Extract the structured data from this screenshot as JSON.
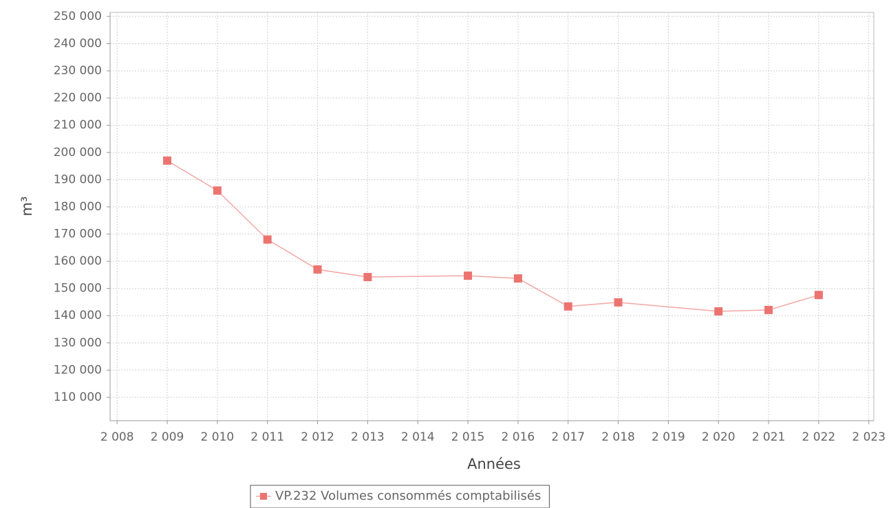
{
  "chart_data": {
    "type": "line",
    "x_label": "Années",
    "y_label": "m³",
    "x": [
      2009,
      2010,
      2011,
      2012,
      2013,
      2015,
      2016,
      2017,
      2018,
      2020,
      2021,
      2022
    ],
    "series": [
      {
        "name": "VP.232 Volumes consommés comptabilisés",
        "color": "#ec7470",
        "line_color": "#f2a6a4",
        "values": [
          197000,
          186000,
          168000,
          157000,
          154200,
          154700,
          153700,
          143400,
          144900,
          141600,
          142100,
          147600
        ]
      }
    ],
    "xlim": [
      2007.86,
      2023.1
    ],
    "xticks": [
      {
        "value": 2008,
        "label": "2 008"
      },
      {
        "value": 2009,
        "label": "2 009"
      },
      {
        "value": 2010,
        "label": "2 010"
      },
      {
        "value": 2011,
        "label": "2 011"
      },
      {
        "value": 2012,
        "label": "2 012"
      },
      {
        "value": 2013,
        "label": "2 013"
      },
      {
        "value": 2014,
        "label": "2 014"
      },
      {
        "value": 2015,
        "label": "2 015"
      },
      {
        "value": 2016,
        "label": "2 016"
      },
      {
        "value": 2017,
        "label": "2 017"
      },
      {
        "value": 2018,
        "label": "2 018"
      },
      {
        "value": 2019,
        "label": "2 019"
      },
      {
        "value": 2020,
        "label": "2 020"
      },
      {
        "value": 2021,
        "label": "2 021"
      },
      {
        "value": 2022,
        "label": "2 022"
      },
      {
        "value": 2023,
        "label": "2 023"
      }
    ],
    "ylim": [
      101400,
      251500
    ],
    "yticks": [
      {
        "value": 110000,
        "label": "110 000"
      },
      {
        "value": 120000,
        "label": "120 000"
      },
      {
        "value": 130000,
        "label": "130 000"
      },
      {
        "value": 140000,
        "label": "140 000"
      },
      {
        "value": 150000,
        "label": "150 000"
      },
      {
        "value": 160000,
        "label": "160 000"
      },
      {
        "value": 170000,
        "label": "170 000"
      },
      {
        "value": 180000,
        "label": "180 000"
      },
      {
        "value": 190000,
        "label": "190 000"
      },
      {
        "value": 200000,
        "label": "200 000"
      },
      {
        "value": 210000,
        "label": "210 000"
      },
      {
        "value": 220000,
        "label": "220 000"
      },
      {
        "value": 230000,
        "label": "230 000"
      },
      {
        "value": 240000,
        "label": "240 000"
      },
      {
        "value": 250000,
        "label": "250 000"
      }
    ],
    "grid": true,
    "legend": "bottom"
  }
}
